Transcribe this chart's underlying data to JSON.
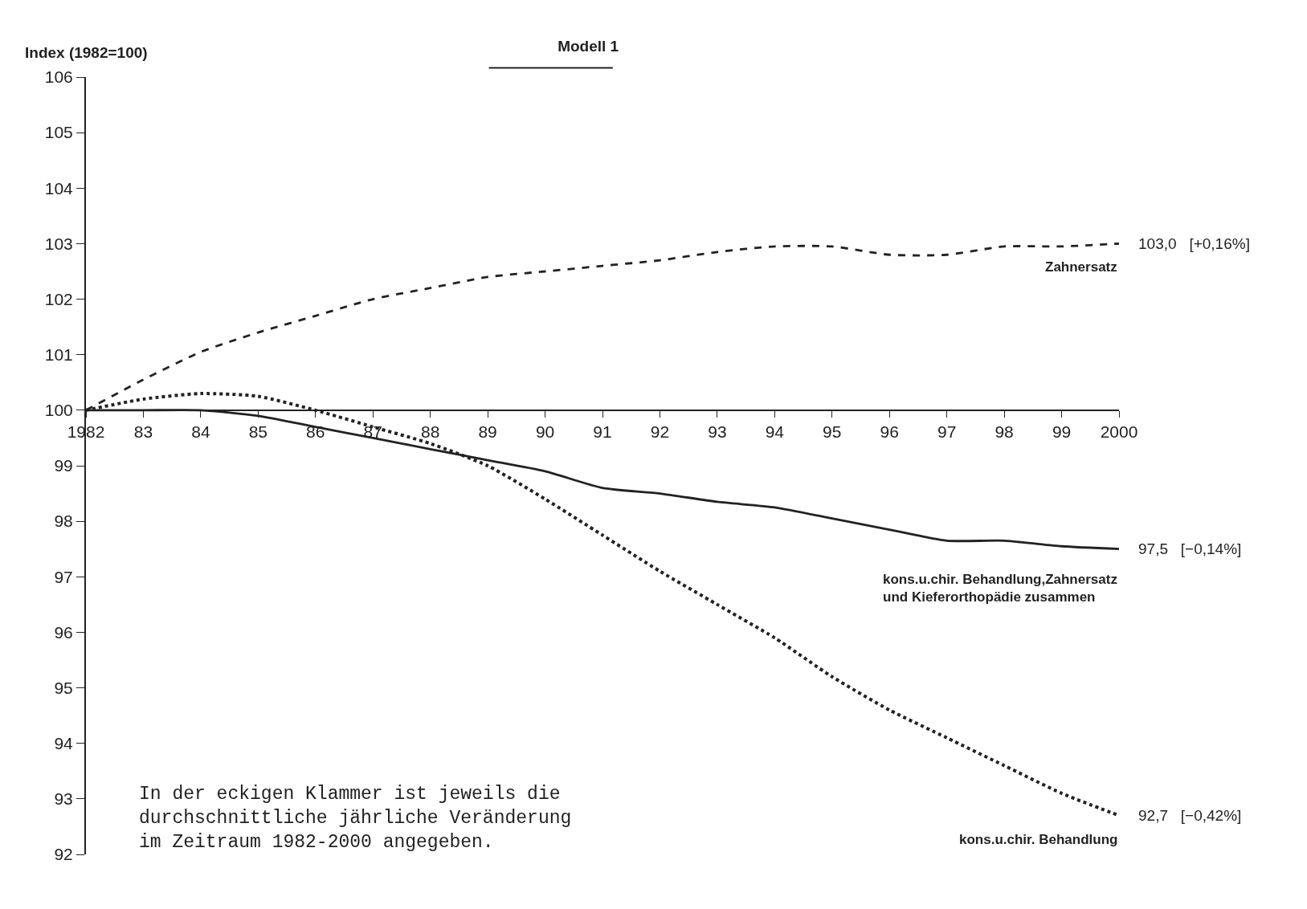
{
  "chart_data": {
    "type": "line",
    "title": "Modell 1",
    "ylabel": "Index (1982=100)",
    "x": [
      1982,
      1983,
      1984,
      1985,
      1986,
      1987,
      1988,
      1989,
      1990,
      1991,
      1992,
      1993,
      1994,
      1995,
      1996,
      1997,
      1998,
      1999,
      2000
    ],
    "xlim": [
      1982,
      2000
    ],
    "xticks": [
      {
        "value": 1982,
        "label": "1982"
      },
      {
        "value": 1983,
        "label": "83"
      },
      {
        "value": 1984,
        "label": "84"
      },
      {
        "value": 1985,
        "label": "85"
      },
      {
        "value": 1986,
        "label": "86"
      },
      {
        "value": 1987,
        "label": "87"
      },
      {
        "value": 1988,
        "label": "88"
      },
      {
        "value": 1989,
        "label": "89"
      },
      {
        "value": 1990,
        "label": "90"
      },
      {
        "value": 1991,
        "label": "91"
      },
      {
        "value": 1992,
        "label": "92"
      },
      {
        "value": 1993,
        "label": "93"
      },
      {
        "value": 1994,
        "label": "94"
      },
      {
        "value": 1995,
        "label": "95"
      },
      {
        "value": 1996,
        "label": "96"
      },
      {
        "value": 1997,
        "label": "97"
      },
      {
        "value": 1998,
        "label": "98"
      },
      {
        "value": 1999,
        "label": "99"
      },
      {
        "value": 2000,
        "label": "2000"
      }
    ],
    "ylim": [
      92,
      106
    ],
    "yticks": [
      92,
      93,
      94,
      95,
      96,
      97,
      98,
      99,
      100,
      101,
      102,
      103,
      104,
      105,
      106
    ],
    "series": [
      {
        "name": "Zahnersatz",
        "color": "#222222",
        "line_style": "dashed",
        "values": [
          100,
          100.55,
          101.05,
          101.4,
          101.7,
          102.0,
          102.2,
          102.4,
          102.5,
          102.6,
          102.7,
          102.85,
          102.95,
          102.95,
          102.8,
          102.8,
          102.95,
          102.95,
          103.0
        ],
        "value_labels": [
          null,
          null,
          null,
          null,
          null,
          null,
          null,
          null,
          null,
          null,
          null,
          null,
          null,
          null,
          null,
          null,
          null,
          null,
          "103,0   [+0,16%]"
        ]
      },
      {
        "name": "kons.u.chir. Behandlung,Zahnersatz\nund Kieferorthopädie zusammen",
        "color": "#222222",
        "line_style": "solid",
        "values": [
          100,
          100,
          100,
          99.9,
          99.7,
          99.5,
          99.3,
          99.1,
          98.9,
          98.6,
          98.5,
          98.35,
          98.25,
          98.05,
          97.85,
          97.65,
          97.65,
          97.55,
          97.5
        ],
        "value_labels": [
          null,
          null,
          null,
          null,
          null,
          null,
          null,
          null,
          null,
          null,
          null,
          null,
          null,
          null,
          null,
          null,
          null,
          null,
          "97,5   [−0,14%]"
        ]
      },
      {
        "name": "kons.u.chir. Behandlung",
        "color": "#222222",
        "line_style": "dotted",
        "values": [
          100,
          100.2,
          100.3,
          100.25,
          100.0,
          99.7,
          99.4,
          99.0,
          98.4,
          97.75,
          97.1,
          96.5,
          95.9,
          95.2,
          94.6,
          94.1,
          93.6,
          93.1,
          92.7
        ],
        "value_labels": [
          null,
          null,
          null,
          null,
          null,
          null,
          null,
          null,
          null,
          null,
          null,
          null,
          null,
          null,
          null,
          null,
          null,
          null,
          "92,7   [−0,42%]"
        ]
      }
    ],
    "annotations": [
      "In der eckigen Klammer ist jeweils die\ndurchschnittliche jährliche Veränderung\nim Zeitraum 1982-2000 angegeben."
    ],
    "grid": false,
    "legend": false,
    "marker": "none"
  }
}
